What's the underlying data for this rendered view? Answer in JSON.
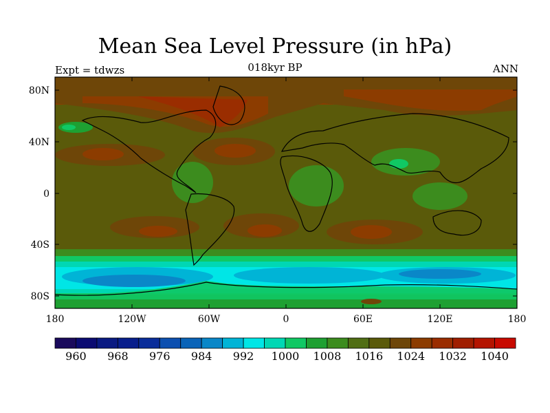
{
  "title": "Mean Sea Level Pressure (in hPa)",
  "subtitle": "018kyr BP",
  "left_label": "Expt = tdwzs",
  "right_label": "ANN",
  "map": {
    "lat_ticks": [
      "80N",
      "40N",
      "0",
      "40S",
      "80S"
    ],
    "lon_ticks": [
      "180",
      "120W",
      "60W",
      "0",
      "60E",
      "120E",
      "180"
    ]
  },
  "colorbar": {
    "colors": [
      "#1a0a5c",
      "#0b0b72",
      "#0a1a82",
      "#081e8c",
      "#0a2d9a",
      "#0c50b0",
      "#0a64b8",
      "#0a87c8",
      "#00b4d6",
      "#00e6e6",
      "#00d7b4",
      "#10c864",
      "#1ea032",
      "#3c8c1e",
      "#506e14",
      "#5a5a0a",
      "#6e4608",
      "#8c3c00",
      "#9a2d00",
      "#a01e00",
      "#b41400",
      "#c80a00"
    ],
    "labels": [
      "960",
      "968",
      "976",
      "984",
      "992",
      "1000",
      "1008",
      "1016",
      "1024",
      "1032",
      "1040"
    ]
  }
}
